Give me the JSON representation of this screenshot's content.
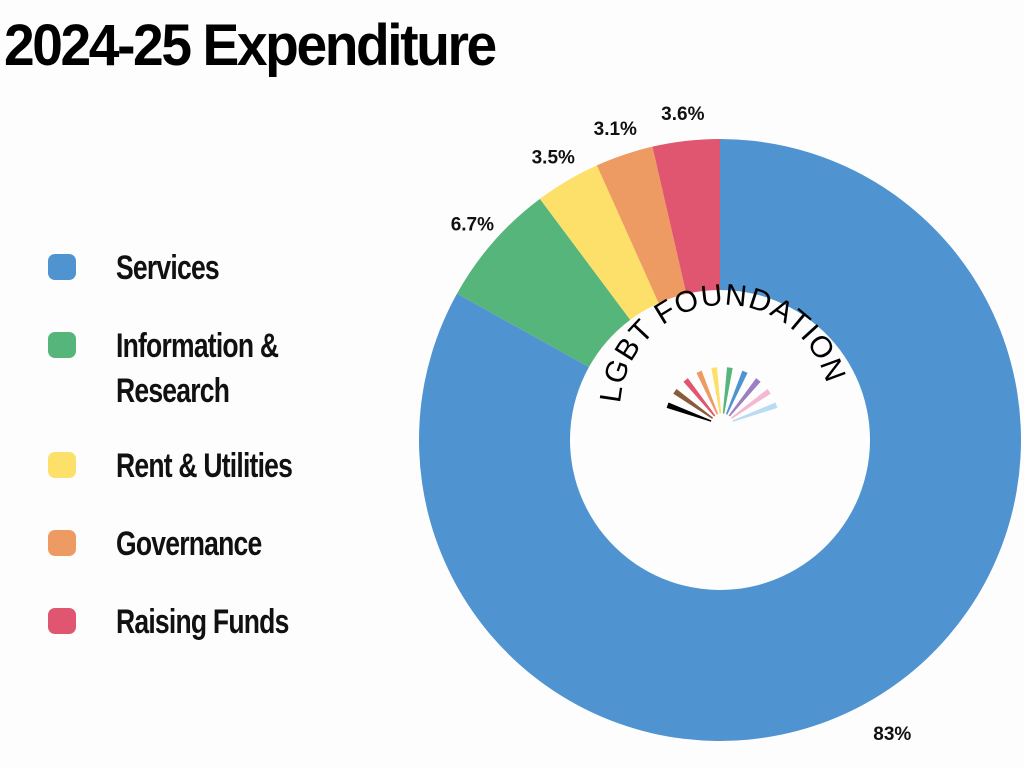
{
  "chart_data": {
    "type": "pie",
    "title": "2024-25 Expenditure",
    "donut": true,
    "categories": [
      "Services",
      "Information & Research",
      "Rent & Utilities",
      "Governance",
      "Raising Funds"
    ],
    "legend_lines": [
      [
        "Services"
      ],
      [
        "Information &",
        "Research"
      ],
      [
        "Rent & Utilities"
      ],
      [
        "Governance"
      ],
      [
        "Raising Funds"
      ]
    ],
    "values": [
      83,
      6.7,
      3.5,
      3.1,
      3.6
    ],
    "data_labels": [
      "83%",
      "6.7%",
      "3.5%",
      "3.1%",
      "3.6%"
    ],
    "colors": [
      "#4f93d1",
      "#55b57a",
      "#fce06a",
      "#ed9a63",
      "#e05570"
    ],
    "legend_placement": "left"
  },
  "logo": {
    "text": "LGBT FOUNDATION",
    "rainbow": [
      "#000000",
      "#8a5a3c",
      "#e05570",
      "#ed9a63",
      "#fce06a",
      "#55b57a",
      "#4f93d1",
      "#9b7fc2",
      "#f4b8d2",
      "#b8dcf2"
    ]
  }
}
